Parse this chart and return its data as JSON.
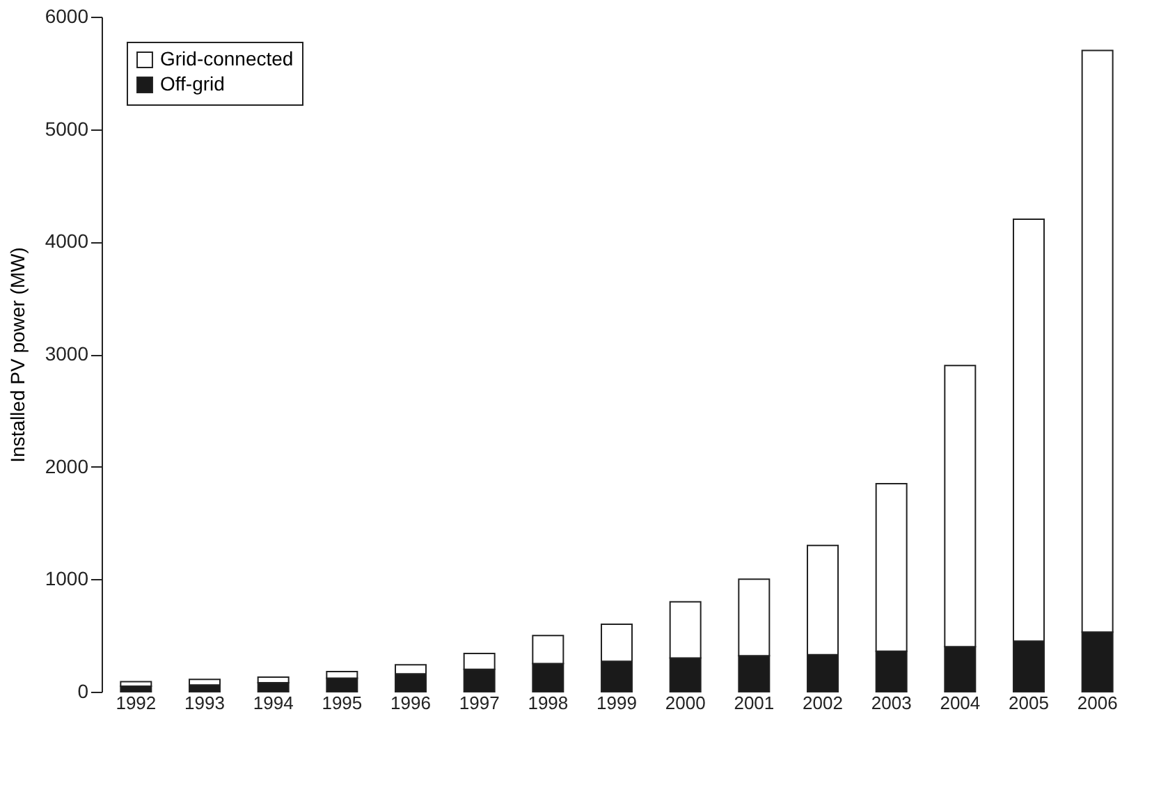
{
  "chart_data": {
    "type": "bar",
    "stacked": true,
    "ylabel": "Installed PV power (MW)",
    "categories": [
      "1992",
      "1993",
      "1994",
      "1995",
      "1996",
      "1997",
      "1998",
      "1999",
      "2000",
      "2001",
      "2002",
      "2003",
      "2004",
      "2005",
      "2006"
    ],
    "series": [
      {
        "name": "Off-grid",
        "color": "#1a1a1a",
        "values": [
          50,
          60,
          80,
          120,
          160,
          200,
          250,
          270,
          300,
          320,
          330,
          360,
          400,
          450,
          530
        ]
      },
      {
        "name": "Grid-connected",
        "color": "#ffffff",
        "values": [
          40,
          50,
          50,
          60,
          80,
          140,
          250,
          330,
          500,
          680,
          970,
          1490,
          2500,
          3750,
          5170
        ]
      }
    ],
    "ylim": [
      0,
      6000
    ],
    "yticks": [
      0,
      1000,
      2000,
      3000,
      4000,
      5000,
      6000
    ],
    "grid": false,
    "legend": "top left"
  }
}
